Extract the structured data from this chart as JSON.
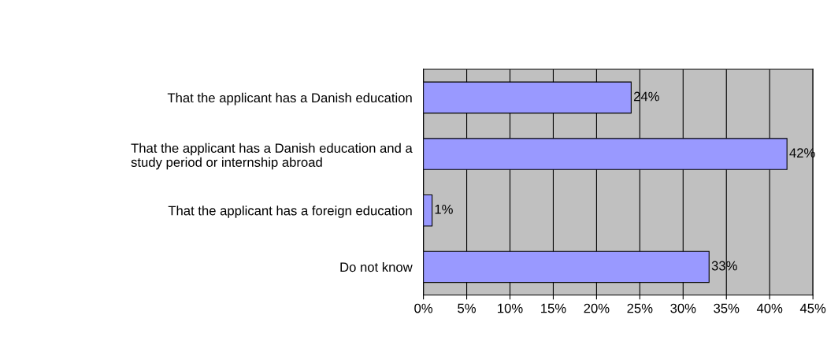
{
  "chart_data": {
    "type": "bar",
    "orientation": "horizontal",
    "categories": [
      "That the applicant has a Danish education",
      "That the applicant has a Danish education and a\nstudy period or internship abroad",
      "That the applicant has a foreign education",
      "Do not know"
    ],
    "values": [
      24,
      42,
      1,
      33
    ],
    "color": "#9999ff",
    "value_labels": [
      "24%",
      "42%",
      "1%",
      "33%"
    ],
    "xlim": [
      0,
      45
    ],
    "xticks": [
      {
        "value": 0,
        "label": "0%"
      },
      {
        "value": 5,
        "label": "5%"
      },
      {
        "value": 10,
        "label": "10%"
      },
      {
        "value": 15,
        "label": "15%"
      },
      {
        "value": 20,
        "label": "20%"
      },
      {
        "value": 25,
        "label": "25%"
      },
      {
        "value": 30,
        "label": "30%"
      },
      {
        "value": 35,
        "label": "35%"
      },
      {
        "value": 40,
        "label": "40%"
      },
      {
        "value": 45,
        "label": "45%"
      }
    ],
    "grid": "x"
  }
}
